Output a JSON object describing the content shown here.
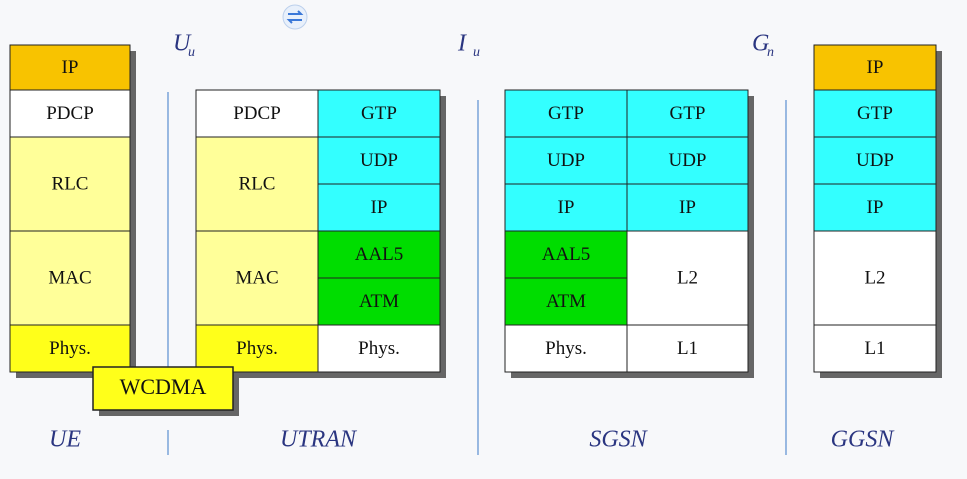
{
  "interfaces": [
    {
      "symbol": "U",
      "subscript": "u"
    },
    {
      "symbol": "I",
      "subscript": "u"
    },
    {
      "symbol": "G",
      "subscript": "n"
    }
  ],
  "nodes": [
    {
      "name": "UE",
      "columns": [
        [
          "IP",
          "PDCP",
          "RLC",
          "MAC",
          "Phys."
        ]
      ]
    },
    {
      "name": "UTRAN",
      "columns": [
        [
          "PDCP",
          "RLC",
          "MAC",
          "Phys."
        ],
        [
          "GTP",
          "UDP",
          "IP",
          "AAL5",
          "ATM",
          "Phys."
        ]
      ]
    },
    {
      "name": "SGSN",
      "columns": [
        [
          "GTP",
          "UDP",
          "IP",
          "AAL5",
          "ATM",
          "Phys."
        ],
        [
          "GTP",
          "UDP",
          "IP",
          "L2",
          "L1"
        ]
      ]
    },
    {
      "name": "GGSN",
      "columns": [
        [
          "IP",
          "GTP",
          "UDP",
          "IP",
          "L2",
          "L1"
        ]
      ]
    }
  ],
  "callout": "WCDMA"
}
